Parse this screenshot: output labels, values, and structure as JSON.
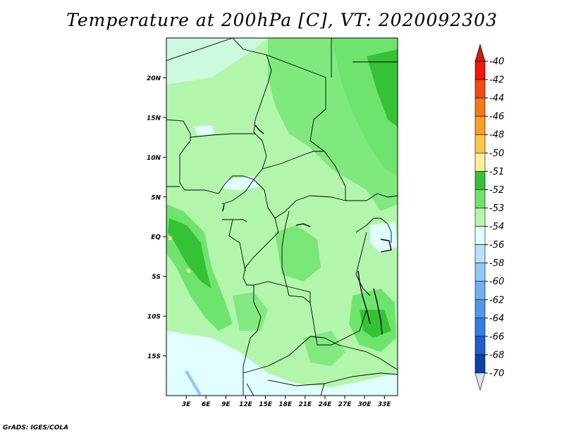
{
  "title": "Temperature at 200hPa [C], VT: 2020092303",
  "footer": "GrADS: IGES/COLA",
  "map": {
    "lat_labels": [
      "20N",
      "15N",
      "10N",
      "5N",
      "EQ",
      "5S",
      "10S",
      "15S"
    ],
    "lat_values": [
      20,
      15,
      10,
      5,
      0,
      -5,
      -10,
      -15
    ],
    "lon_labels": [
      "3E",
      "6E",
      "9E",
      "12E",
      "15E",
      "18E",
      "21E",
      "24E",
      "27E",
      "30E",
      "33E"
    ],
    "lon_values": [
      3,
      6,
      9,
      12,
      15,
      18,
      21,
      24,
      27,
      30,
      33
    ],
    "lon_range": [
      0,
      35
    ],
    "lat_range": [
      -20,
      25
    ]
  },
  "colorbar": {
    "labels": [
      "-40",
      "-42",
      "-44",
      "-46",
      "-48",
      "-50",
      "-51",
      "-52",
      "-53",
      "-54",
      "-56",
      "-58",
      "-60",
      "-62",
      "-64",
      "-66",
      "-68",
      "-70"
    ],
    "colors": [
      "#f0140a",
      "#f04a10",
      "#f47a18",
      "#f8a022",
      "#fcc848",
      "#fef09c",
      "#36c236",
      "#6ee46e",
      "#b2f6ac",
      "#e0feff",
      "#b6e0fc",
      "#94c8f8",
      "#74aef2",
      "#5296ea",
      "#357de0",
      "#1e5ed0",
      "#0e40a8",
      "#0a1c78"
    ],
    "top_cap_color": "#c81e0a",
    "bottom_cap_color": "#e0e0f8"
  }
}
